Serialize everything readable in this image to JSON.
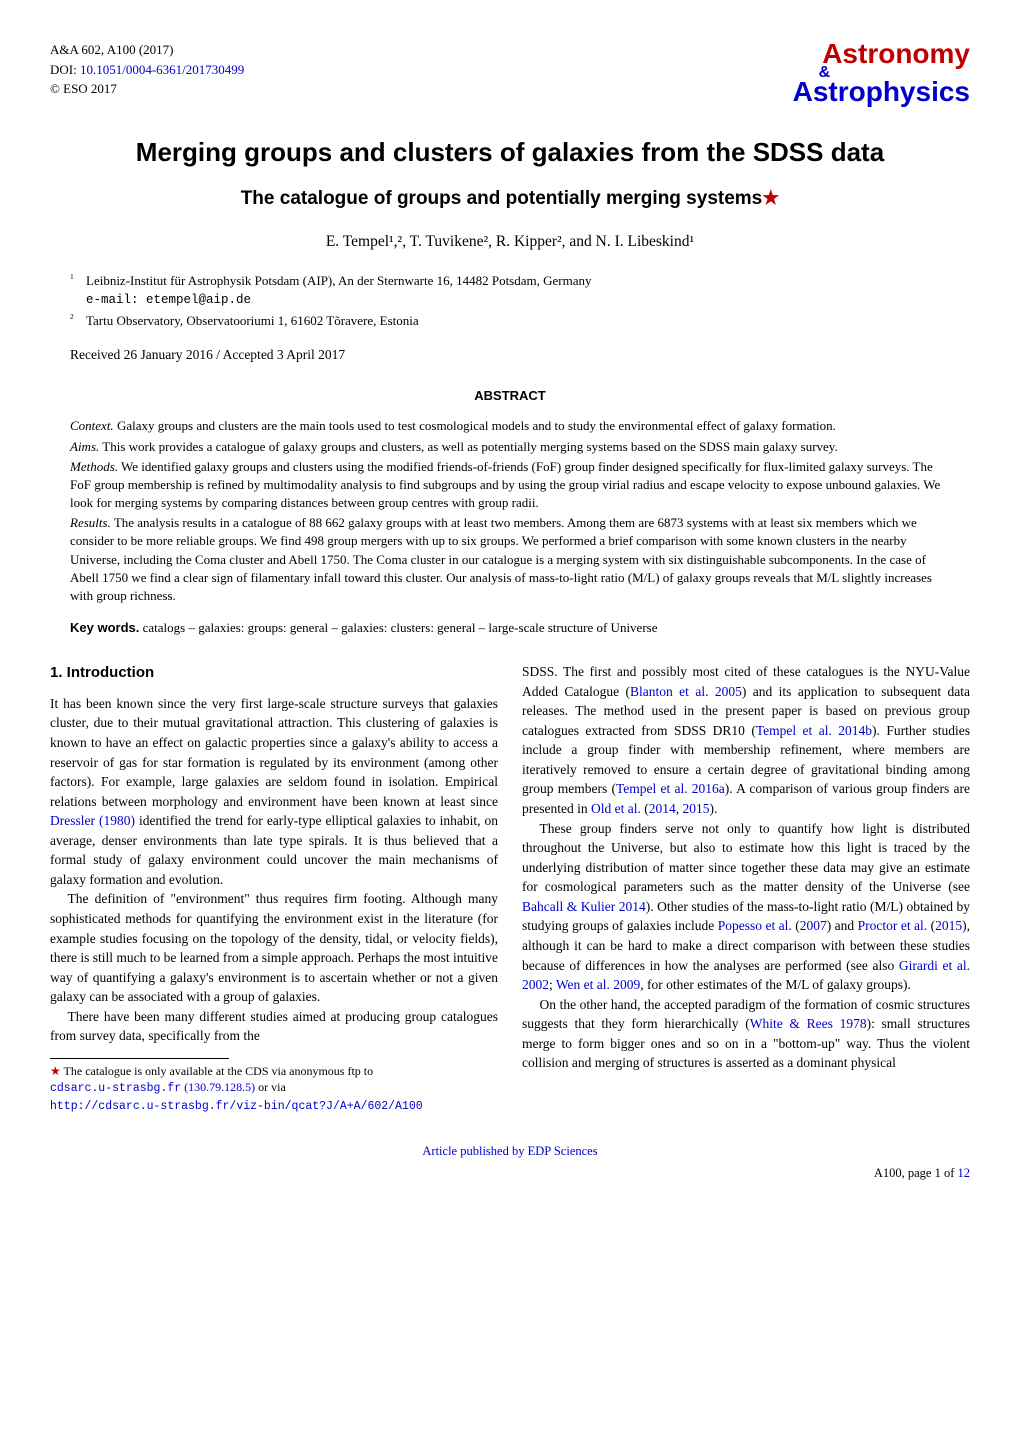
{
  "journal": {
    "ref": "A&A 602, A100 (2017)",
    "doi_label": "DOI: ",
    "doi": "10.1051/0004-6361/201730499",
    "copyright": "© ESO 2017"
  },
  "logo": {
    "line1": "Astronomy",
    "amp": "&",
    "line2": "Astrophysics"
  },
  "title": "Merging groups and clusters of galaxies from the SDSS data",
  "subtitle": "The catalogue of groups and potentially merging systems",
  "subtitle_star": "★",
  "authors": "E. Tempel¹,², T. Tuvikene², R. Kipper², and N. I. Libeskind¹",
  "affiliations": [
    {
      "num": "1",
      "text": "Leibniz-Institut für Astrophysik Potsdam (AIP), An der Sternwarte 16, 14482 Potsdam, Germany"
    },
    {
      "num": "2",
      "text": "Tartu Observatory, Observatooriumi 1, 61602 Tõravere, Estonia"
    }
  ],
  "email_label": "e-mail: ",
  "email": "etempel@aip.de",
  "dates": "Received 26 January 2016 / Accepted 3 April 2017",
  "abstract_head": "ABSTRACT",
  "abstract": {
    "context_label": "Context.",
    "context": " Galaxy groups and clusters are the main tools used to test cosmological models and to study the environmental effect of galaxy formation.",
    "aims_label": "Aims.",
    "aims": " This work provides a catalogue of galaxy groups and clusters, as well as potentially merging systems based on the SDSS main galaxy survey.",
    "methods_label": "Methods.",
    "methods": " We identified galaxy groups and clusters using the modified friends-of-friends (FoF) group finder designed specifically for flux-limited galaxy surveys. The FoF group membership is refined by multimodality analysis to find subgroups and by using the group virial radius and escape velocity to expose unbound galaxies. We look for merging systems by comparing distances between group centres with group radii.",
    "results_label": "Results.",
    "results": " The analysis results in a catalogue of 88 662 galaxy groups with at least two members. Among them are 6873 systems with at least six members which we consider to be more reliable groups. We find 498 group mergers with up to six groups. We performed a brief comparison with some known clusters in the nearby Universe, including the Coma cluster and Abell 1750. The Coma cluster in our catalogue is a merging system with six distinguishable subcomponents. In the case of Abell 1750 we find a clear sign of filamentary infall toward this cluster. Our analysis of mass-to-light ratio (M/L) of galaxy groups reveals that M/L slightly increases with group richness."
  },
  "keywords_label": "Key words.",
  "keywords": " catalogs – galaxies: groups: general – galaxies: clusters: general – large-scale structure of Universe",
  "section1_head": "1. Introduction",
  "body": {
    "p1a": "It has been known since the very first large-scale structure surveys that galaxies cluster, due to their mutual gravitational attraction. This clustering of galaxies is known to have an effect on galactic properties since a galaxy's ability to access a reservoir of gas for star formation is regulated by its environment (among other factors). For example, large galaxies are seldom found in isolation. Empirical relations between morphology and environment have been known at least since ",
    "c1": "Dressler",
    "c1y": " (1980)",
    "p1b": " identified the trend for early-type elliptical galaxies to inhabit, on average, denser environments than late type spirals. It is thus believed that a formal study of galaxy environment could uncover the main mechanisms of galaxy formation and evolution.",
    "p2": "The definition of \"environment\" thus requires firm footing. Although many sophisticated methods for quantifying the environment exist in the literature (for example studies focusing on the topology of the density, tidal, or velocity fields), there is still much to be learned from a simple approach. Perhaps the most intuitive way of quantifying a galaxy's environment is to ascertain whether or not a given galaxy can be associated with a group of galaxies.",
    "p3a": "There have been many different studies aimed at producing group catalogues from survey data, specifically from the ",
    "p3b": "SDSS. The first and possibly most cited of these catalogues is the NYU-Value Added Catalogue (",
    "c2": "Blanton et al. 2005",
    "p3c": ") and its application to subsequent data releases. The method used in the present paper is based on previous group catalogues extracted from SDSS DR10 (",
    "c3": "Tempel et al. 2014b",
    "p3d": "). Further studies include a group finder with membership refinement, where members are iteratively removed to ensure a certain degree of gravitational binding among group members (",
    "c4": "Tempel et al. 2016a",
    "p3e": "). A comparison of various group finders are presented in ",
    "c5": "Old et al.",
    "p3f": " (",
    "c5y": "2014",
    "p3g": ", ",
    "c5y2": "2015",
    "p3h": ").",
    "p4a": "These group finders serve not only to quantify how light is distributed throughout the Universe, but also to estimate how this light is traced by the underlying distribution of matter since together these data may give an estimate for cosmological parameters such as the matter density of the Universe (see ",
    "c6": "Bahcall & Kulier 2014",
    "p4b": "). Other studies of the mass-to-light ratio (M/L) obtained by studying groups of galaxies include ",
    "c7": "Popesso et al.",
    "p4c": " (",
    "c7y": "2007",
    "p4d": ") and ",
    "c8": "Proctor et al.",
    "p4e": " (",
    "c8y": "2015",
    "p4f": "), although it can be hard to make a direct comparison with between these studies because of differences in how the analyses are performed (see also ",
    "c9": "Girardi et al. 2002",
    "p4g": "; ",
    "c10": "Wen et al. 2009",
    "p4h": ", for other estimates of the M/L of galaxy groups).",
    "p5a": "On the other hand, the accepted paradigm of the formation of cosmic structures suggests that they form hierarchically (",
    "c11": "White & Rees 1978",
    "p5b": "): small structures merge to form bigger ones and so on in a \"bottom-up\" way. Thus the violent collision and merging of structures is asserted as a dominant physical"
  },
  "footnote": {
    "star": "★",
    "text": " The catalogue is only available at the CDS via anonymous ftp to ",
    "link1": "cdsarc.u-strasbg.fr",
    "ip": " (130.79.128.5)",
    "via": " or via",
    "link2": "http://cdsarc.u-strasbg.fr/viz-bin/qcat?J/A+A/602/A100"
  },
  "footer": {
    "link": "Article published by EDP Sciences",
    "page": "A100, page 1 of ",
    "total": "12"
  }
}
